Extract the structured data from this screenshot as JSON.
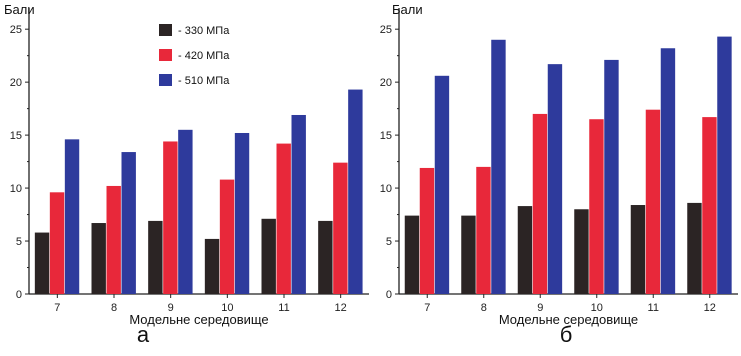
{
  "chart_data": [
    {
      "type": "bar",
      "panel_label": "а",
      "ylabel": "Бали",
      "xlabel": "Модельне середовище",
      "categories": [
        "7",
        "8",
        "9",
        "10",
        "11",
        "12"
      ],
      "ylim": [
        0,
        27
      ],
      "yticks": [
        "0",
        "5",
        "10",
        "15",
        "20",
        "25"
      ],
      "legend": {
        "placement": "top-left-inside"
      },
      "series": [
        {
          "name": "- 330 МПа",
          "color": "#2b2424",
          "values": [
            5.8,
            6.7,
            6.9,
            5.2,
            7.1,
            6.9
          ]
        },
        {
          "name": "- 420 МПа",
          "color": "#e8283a",
          "values": [
            9.6,
            10.2,
            14.4,
            10.8,
            14.2,
            12.4
          ]
        },
        {
          "name": "- 510 МПа",
          "color": "#2e3a9c",
          "values": [
            14.6,
            13.4,
            15.5,
            15.2,
            16.9,
            19.3
          ]
        }
      ]
    },
    {
      "type": "bar",
      "panel_label": "б",
      "ylabel": "Бали",
      "xlabel": "Модельне середовище",
      "categories": [
        "7",
        "8",
        "9",
        "10",
        "11",
        "12"
      ],
      "ylim": [
        0,
        27
      ],
      "yticks": [
        "0",
        "5",
        "10",
        "15",
        "20",
        "25"
      ],
      "series": [
        {
          "name": "- 330 МПа",
          "color": "#2b2424",
          "values": [
            7.4,
            7.4,
            8.3,
            8.0,
            8.4,
            8.6
          ]
        },
        {
          "name": "- 420 МПа",
          "color": "#e8283a",
          "values": [
            11.9,
            12.0,
            17.0,
            16.5,
            17.4,
            16.7
          ]
        },
        {
          "name": "- 510 МПа",
          "color": "#2e3a9c",
          "values": [
            20.6,
            24.0,
            21.7,
            22.1,
            23.2,
            24.3
          ]
        }
      ]
    }
  ]
}
